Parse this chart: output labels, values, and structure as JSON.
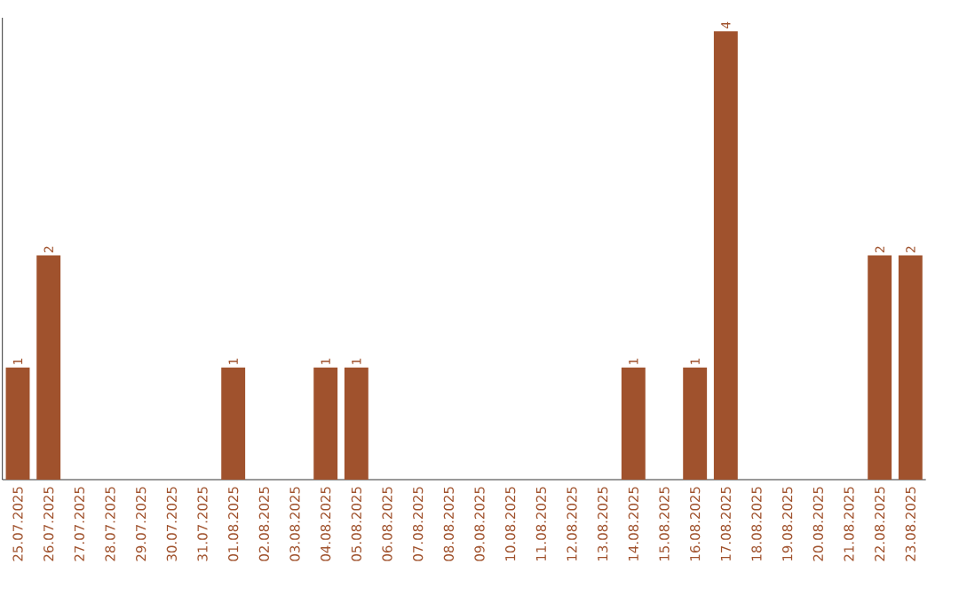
{
  "chart_data": {
    "type": "bar",
    "color": "#a0522d",
    "categories": [
      "25.07.2025",
      "26.07.2025",
      "27.07.2025",
      "28.07.2025",
      "29.07.2025",
      "30.07.2025",
      "31.07.2025",
      "01.08.2025",
      "02.08.2025",
      "03.08.2025",
      "04.08.2025",
      "05.08.2025",
      "06.08.2025",
      "07.08.2025",
      "08.08.2025",
      "09.08.2025",
      "10.08.2025",
      "11.08.2025",
      "12.08.2025",
      "13.08.2025",
      "14.08.2025",
      "15.08.2025",
      "16.08.2025",
      "17.08.2025",
      "18.08.2025",
      "19.08.2025",
      "20.08.2025",
      "21.08.2025",
      "22.08.2025",
      "23.08.2025"
    ],
    "values": [
      1,
      2,
      0,
      0,
      0,
      0,
      0,
      1,
      0,
      0,
      1,
      1,
      0,
      0,
      0,
      0,
      0,
      0,
      0,
      0,
      1,
      0,
      1,
      4,
      0,
      0,
      0,
      0,
      2,
      2
    ],
    "value_labels": [
      "1",
      "2",
      null,
      null,
      null,
      null,
      null,
      "1",
      null,
      null,
      "1",
      "1",
      null,
      null,
      null,
      null,
      null,
      null,
      null,
      null,
      "1",
      null,
      "1",
      "4",
      null,
      null,
      null,
      null,
      "2",
      "2"
    ],
    "tick_labels": "x",
    "grid": false
  }
}
